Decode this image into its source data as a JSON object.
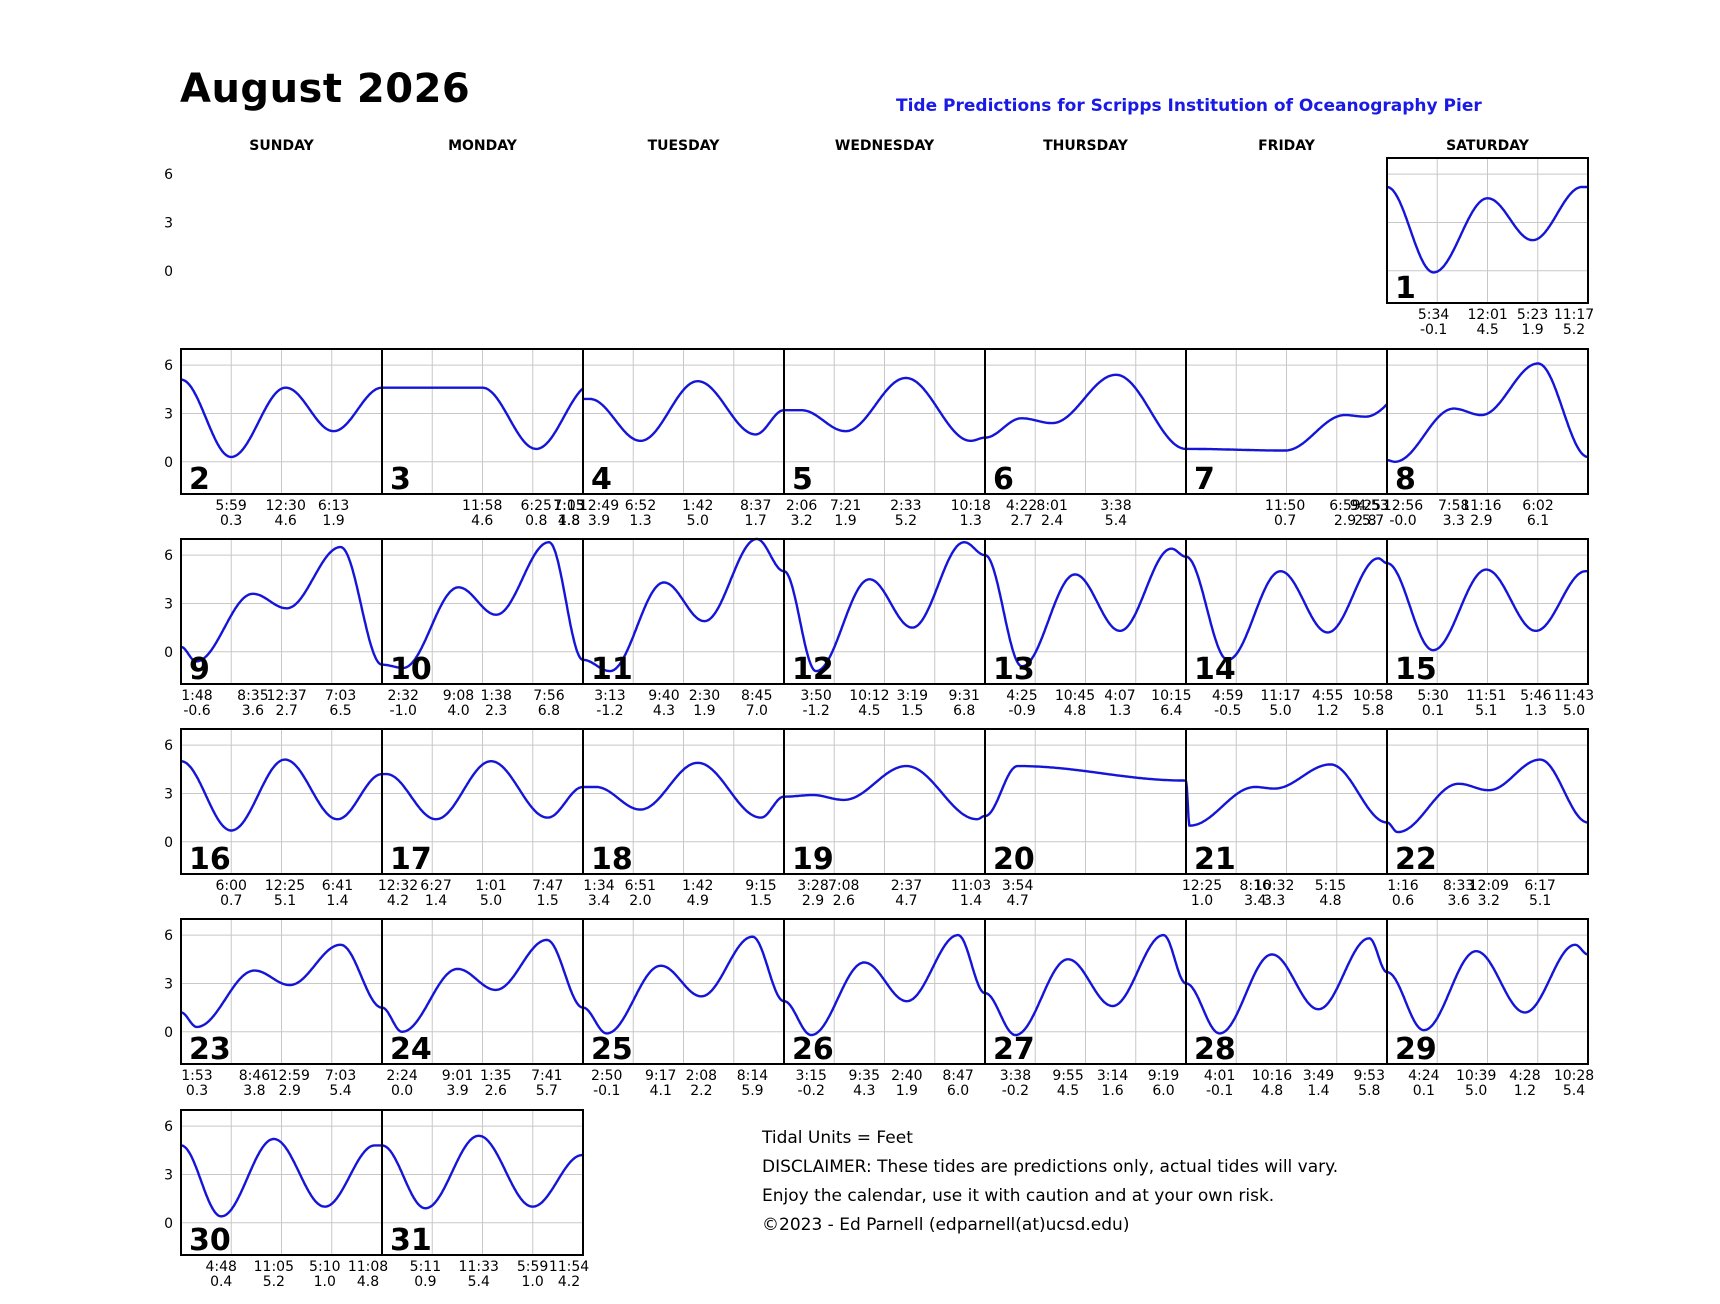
{
  "month_title": "August 2026",
  "subtitle": "Tide Predictions for Scripps Institution of Oceanography Pier",
  "weekdays": [
    "SUNDAY",
    "MONDAY",
    "TUESDAY",
    "WEDNESDAY",
    "THURSDAY",
    "FRIDAY",
    "SATURDAY"
  ],
  "y_ticks": [
    "6",
    "3",
    "0"
  ],
  "notes": {
    "units": "Tidal Units = Feet",
    "disclaimer": "DISCLAIMER: These tides are predictions only, actual tides will vary.",
    "enjoy": "Enjoy the calendar, use it with caution and at your own risk.",
    "copyright": "©2023 - Ed Parnell (edparnell(at)ucsd.edu)"
  },
  "colors": {
    "curve": "#1515d8",
    "grid": "#c8c8c8",
    "subtitle": "#1a1ae6"
  },
  "chart_data": {
    "type": "line",
    "title": "Tide Predictions for Scripps Institution of Oceanography Pier",
    "ylabel": "Feet",
    "ylim": [
      -2,
      7
    ],
    "y_ticks": [
      6,
      3,
      0
    ],
    "grid": true,
    "days": [
      {
        "day": 1,
        "week": 0,
        "col": 6,
        "start": 5.2,
        "end": 5.2,
        "tides": [
          {
            "t": "5:34",
            "h": "-0.1"
          },
          {
            "t": "12:01",
            "h": "4.5"
          },
          {
            "t": "5:23",
            "h": "1.9"
          },
          {
            "t": "11:17",
            "h": "5.2"
          }
        ]
      },
      {
        "day": 2,
        "week": 1,
        "col": 0,
        "start": 5.1,
        "end": 4.6,
        "tides": [
          {
            "t": "5:59",
            "h": "0.3"
          },
          {
            "t": "12:30",
            "h": "4.6"
          },
          {
            "t": "6:13",
            "h": "1.9"
          }
        ]
      },
      {
        "day": 3,
        "week": 1,
        "col": 1,
        "start": 4.6,
        "end": 3.9,
        "tides": [
          {
            "t": "11:58",
            "h": "4.6"
          },
          {
            "t": "6:25",
            "h": "0.8"
          },
          {
            "t": "1:03",
            "h": "4.8"
          },
          {
            "t": "7:15",
            "h": "1.8"
          }
        ]
      },
      {
        "day": 4,
        "week": 1,
        "col": 2,
        "start": 3.9,
        "end": 3.2,
        "tides": [
          {
            "t": "12:49",
            "h": "3.9"
          },
          {
            "t": "6:52",
            "h": "1.3"
          },
          {
            "t": "1:42",
            "h": "5.0"
          },
          {
            "t": "8:37",
            "h": "1.7"
          }
        ]
      },
      {
        "day": 5,
        "week": 1,
        "col": 3,
        "start": 3.2,
        "end": 1.5,
        "tides": [
          {
            "t": "2:06",
            "h": "3.2"
          },
          {
            "t": "7:21",
            "h": "1.9"
          },
          {
            "t": "2:33",
            "h": "5.2"
          },
          {
            "t": "10:18",
            "h": "1.3"
          }
        ]
      },
      {
        "day": 6,
        "week": 1,
        "col": 4,
        "start": 1.5,
        "end": 0.8,
        "tides": [
          {
            "t": "4:22",
            "h": "2.7"
          },
          {
            "t": "8:01",
            "h": "2.4"
          },
          {
            "t": "3:38",
            "h": "5.4"
          }
        ]
      },
      {
        "day": 7,
        "week": 1,
        "col": 5,
        "start": 0.8,
        "end": 0.1,
        "tides": [
          {
            "t": "11:50",
            "h": "0.7"
          },
          {
            "t": "6:59",
            "h": "2.9"
          },
          {
            "t": "9:25",
            "h": "2.8"
          },
          {
            "t": "4:53",
            "h": "5.7"
          }
        ]
      },
      {
        "day": 8,
        "week": 1,
        "col": 6,
        "start": 0.1,
        "end": 0.3,
        "tides": [
          {
            "t": "12:56",
            "h": "-0.0"
          },
          {
            "t": "7:58",
            "h": "3.3"
          },
          {
            "t": "11:16",
            "h": "2.9"
          },
          {
            "t": "6:02",
            "h": "6.1"
          }
        ]
      },
      {
        "day": 9,
        "week": 2,
        "col": 0,
        "start": 0.3,
        "end": -0.8,
        "tides": [
          {
            "t": "1:48",
            "h": "-0.6"
          },
          {
            "t": "8:35",
            "h": "3.6"
          },
          {
            "t": "12:37",
            "h": "2.7"
          },
          {
            "t": "7:03",
            "h": "6.5"
          }
        ]
      },
      {
        "day": 10,
        "week": 2,
        "col": 1,
        "start": -0.8,
        "end": -0.5,
        "tides": [
          {
            "t": "2:32",
            "h": "-1.0"
          },
          {
            "t": "9:08",
            "h": "4.0"
          },
          {
            "t": "1:38",
            "h": "2.3"
          },
          {
            "t": "7:56",
            "h": "6.8"
          }
        ]
      },
      {
        "day": 11,
        "week": 2,
        "col": 2,
        "start": -0.5,
        "end": 5.0,
        "tides": [
          {
            "t": "3:13",
            "h": "-1.2"
          },
          {
            "t": "9:40",
            "h": "4.3"
          },
          {
            "t": "2:30",
            "h": "1.9"
          },
          {
            "t": "8:45",
            "h": "7.0"
          }
        ]
      },
      {
        "day": 12,
        "week": 2,
        "col": 3,
        "start": 5.0,
        "end": 6.0,
        "tides": [
          {
            "t": "3:50",
            "h": "-1.2"
          },
          {
            "t": "10:12",
            "h": "4.5"
          },
          {
            "t": "3:19",
            "h": "1.5"
          },
          {
            "t": "9:31",
            "h": "6.8"
          }
        ]
      },
      {
        "day": 13,
        "week": 2,
        "col": 4,
        "start": 6.0,
        "end": 5.9,
        "tides": [
          {
            "t": "4:25",
            "h": "-0.9"
          },
          {
            "t": "10:45",
            "h": "4.8"
          },
          {
            "t": "4:07",
            "h": "1.3"
          },
          {
            "t": "10:15",
            "h": "6.4"
          }
        ]
      },
      {
        "day": 14,
        "week": 2,
        "col": 5,
        "start": 5.9,
        "end": 5.5,
        "tides": [
          {
            "t": "4:59",
            "h": "-0.5"
          },
          {
            "t": "11:17",
            "h": "5.0"
          },
          {
            "t": "4:55",
            "h": "1.2"
          },
          {
            "t": "10:58",
            "h": "5.8"
          }
        ]
      },
      {
        "day": 15,
        "week": 2,
        "col": 6,
        "start": 5.5,
        "end": 5.0,
        "tides": [
          {
            "t": "5:30",
            "h": "0.1"
          },
          {
            "t": "11:51",
            "h": "5.1"
          },
          {
            "t": "5:46",
            "h": "1.3"
          },
          {
            "t": "11:43",
            "h": "5.0"
          }
        ]
      },
      {
        "day": 16,
        "week": 3,
        "col": 0,
        "start": 5.0,
        "end": 4.2,
        "tides": [
          {
            "t": "6:00",
            "h": "0.7"
          },
          {
            "t": "12:25",
            "h": "5.1"
          },
          {
            "t": "6:41",
            "h": "1.4"
          }
        ]
      },
      {
        "day": 17,
        "week": 3,
        "col": 1,
        "start": 4.2,
        "end": 3.4,
        "tides": [
          {
            "t": "12:32",
            "h": "4.2"
          },
          {
            "t": "6:27",
            "h": "1.4"
          },
          {
            "t": "1:01",
            "h": "5.0"
          },
          {
            "t": "7:47",
            "h": "1.5"
          }
        ]
      },
      {
        "day": 18,
        "week": 3,
        "col": 2,
        "start": 3.4,
        "end": 2.8,
        "tides": [
          {
            "t": "1:34",
            "h": "3.4"
          },
          {
            "t": "6:51",
            "h": "2.0"
          },
          {
            "t": "1:42",
            "h": "4.9"
          },
          {
            "t": "9:15",
            "h": "1.5"
          }
        ]
      },
      {
        "day": 19,
        "week": 3,
        "col": 3,
        "start": 2.8,
        "end": 1.6,
        "tides": [
          {
            "t": "3:28",
            "h": "2.9"
          },
          {
            "t": "7:08",
            "h": "2.6"
          },
          {
            "t": "2:37",
            "h": "4.7"
          },
          {
            "t": "11:03",
            "h": "1.4"
          }
        ]
      },
      {
        "day": 20,
        "week": 3,
        "col": 4,
        "start": 1.6,
        "end": 3.8,
        "tides": [
          {
            "t": "3:54",
            "h": "4.7"
          }
        ]
      },
      {
        "day": 21,
        "week": 3,
        "col": 5,
        "start": 3.8,
        "end": 1.2,
        "tides": [
          {
            "t": "12:25",
            "h": "1.0"
          },
          {
            "t": "8:16",
            "h": "3.4"
          },
          {
            "t": "10:32",
            "h": "3.3"
          },
          {
            "t": "5:15",
            "h": "4.8"
          }
        ]
      },
      {
        "day": 22,
        "week": 3,
        "col": 6,
        "start": 1.2,
        "end": 1.2,
        "tides": [
          {
            "t": "1:16",
            "h": "0.6"
          },
          {
            "t": "8:33",
            "h": "3.6"
          },
          {
            "t": "12:09",
            "h": "3.2"
          },
          {
            "t": "6:17",
            "h": "5.1"
          }
        ]
      },
      {
        "day": 23,
        "week": 4,
        "col": 0,
        "start": 1.2,
        "end": 1.5,
        "tides": [
          {
            "t": "1:53",
            "h": "0.3"
          },
          {
            "t": "8:46",
            "h": "3.8"
          },
          {
            "t": "12:59",
            "h": "2.9"
          },
          {
            "t": "7:03",
            "h": "5.4"
          }
        ]
      },
      {
        "day": 24,
        "week": 4,
        "col": 1,
        "start": 1.5,
        "end": 1.5,
        "tides": [
          {
            "t": "2:24",
            "h": "0.0"
          },
          {
            "t": "9:01",
            "h": "3.9"
          },
          {
            "t": "1:35",
            "h": "2.6"
          },
          {
            "t": "7:41",
            "h": "5.7"
          }
        ]
      },
      {
        "day": 25,
        "week": 4,
        "col": 2,
        "start": 1.5,
        "end": 1.9,
        "tides": [
          {
            "t": "2:50",
            "h": "-0.1"
          },
          {
            "t": "9:17",
            "h": "4.1"
          },
          {
            "t": "2:08",
            "h": "2.2"
          },
          {
            "t": "8:14",
            "h": "5.9"
          }
        ]
      },
      {
        "day": 26,
        "week": 4,
        "col": 3,
        "start": 1.9,
        "end": 2.4,
        "tides": [
          {
            "t": "3:15",
            "h": "-0.2"
          },
          {
            "t": "9:35",
            "h": "4.3"
          },
          {
            "t": "2:40",
            "h": "1.9"
          },
          {
            "t": "8:47",
            "h": "6.0"
          }
        ]
      },
      {
        "day": 27,
        "week": 4,
        "col": 4,
        "start": 2.4,
        "end": 3.0,
        "tides": [
          {
            "t": "3:38",
            "h": "-0.2"
          },
          {
            "t": "9:55",
            "h": "4.5"
          },
          {
            "t": "3:14",
            "h": "1.6"
          },
          {
            "t": "9:19",
            "h": "6.0"
          }
        ]
      },
      {
        "day": 28,
        "week": 4,
        "col": 5,
        "start": 3.0,
        "end": 3.7,
        "tides": [
          {
            "t": "4:01",
            "h": "-0.1"
          },
          {
            "t": "10:16",
            "h": "4.8"
          },
          {
            "t": "3:49",
            "h": "1.4"
          },
          {
            "t": "9:53",
            "h": "5.8"
          }
        ]
      },
      {
        "day": 29,
        "week": 4,
        "col": 6,
        "start": 3.7,
        "end": 4.8,
        "tides": [
          {
            "t": "4:24",
            "h": "0.1"
          },
          {
            "t": "10:39",
            "h": "5.0"
          },
          {
            "t": "4:28",
            "h": "1.2"
          },
          {
            "t": "10:28",
            "h": "5.4"
          }
        ]
      },
      {
        "day": 30,
        "week": 5,
        "col": 0,
        "start": 4.8,
        "end": 4.8,
        "tides": [
          {
            "t": "4:48",
            "h": "0.4"
          },
          {
            "t": "11:05",
            "h": "5.2"
          },
          {
            "t": "5:10",
            "h": "1.0"
          },
          {
            "t": "11:08",
            "h": "4.8"
          }
        ]
      },
      {
        "day": 31,
        "week": 5,
        "col": 1,
        "start": 4.8,
        "end": 4.2,
        "tides": [
          {
            "t": "5:11",
            "h": "0.9"
          },
          {
            "t": "11:33",
            "h": "5.4"
          },
          {
            "t": "5:59",
            "h": "1.0"
          },
          {
            "t": "11:54",
            "h": "4.2"
          }
        ]
      }
    ]
  }
}
